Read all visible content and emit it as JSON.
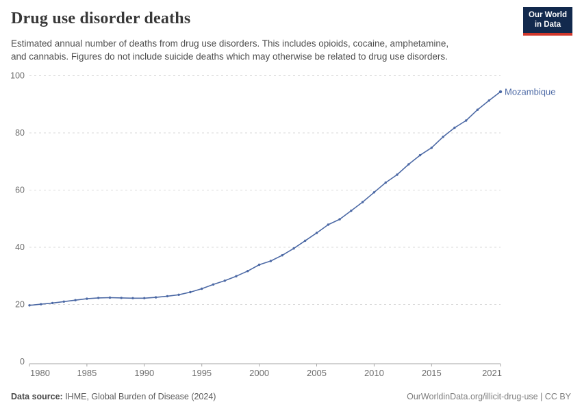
{
  "header": {
    "title": "Drug use disorder deaths",
    "subtitle_lines": [
      "Estimated annual number of deaths from drug use disorders. This includes opioids, cocaine, amphetamine,",
      "and cannabis. Figures do not include suicide deaths which may otherwise be related to drug use disorders."
    ],
    "logo": {
      "line1": "Our World",
      "line2": "in Data",
      "bg_color": "#12294d",
      "bar_color": "#d0372b"
    }
  },
  "chart_data": {
    "type": "line",
    "title": "Drug use disorder deaths",
    "xlabel": "",
    "ylabel": "",
    "xlim": [
      1980,
      2021
    ],
    "ylim": [
      0,
      100
    ],
    "grid": "horizontal-dashed",
    "legend_position": "end-of-line-label",
    "xticks": [
      1980,
      1985,
      1990,
      1995,
      2000,
      2005,
      2010,
      2015,
      2021
    ],
    "yticks": [
      0,
      20,
      40,
      60,
      80,
      100
    ],
    "x": [
      1980,
      1981,
      1982,
      1983,
      1984,
      1985,
      1986,
      1987,
      1988,
      1989,
      1990,
      1991,
      1992,
      1993,
      1994,
      1995,
      1996,
      1997,
      1998,
      1999,
      2000,
      2001,
      2002,
      2003,
      2004,
      2005,
      2006,
      2007,
      2008,
      2009,
      2010,
      2011,
      2012,
      2013,
      2014,
      2015,
      2016,
      2017,
      2018,
      2019,
      2020,
      2021
    ],
    "series": [
      {
        "name": "Mozambique",
        "color": "#4c69a5",
        "values": [
          19.7,
          20.1,
          20.5,
          21.0,
          21.5,
          22.0,
          22.3,
          22.4,
          22.3,
          22.2,
          22.2,
          22.5,
          22.9,
          23.4,
          24.3,
          25.5,
          27.0,
          28.3,
          29.9,
          31.7,
          33.9,
          35.2,
          37.2,
          39.6,
          42.3,
          45.0,
          47.9,
          49.8,
          52.8,
          55.8,
          59.2,
          62.6,
          65.4,
          69.0,
          72.2,
          74.8,
          78.6,
          81.8,
          84.3,
          88.1,
          91.3,
          94.4
        ]
      }
    ]
  },
  "footer": {
    "source_label": "Data source:",
    "source_text": " IHME, Global Burden of Disease (2024)",
    "right_text": "OurWorldinData.org/illicit-drug-use | CC BY"
  }
}
